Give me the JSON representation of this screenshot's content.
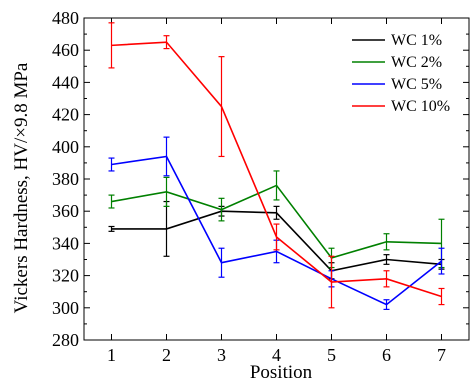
{
  "chart_data": {
    "type": "line",
    "title": "",
    "xlabel": "Position",
    "ylabel": "Vickers Hardness, HV/×9.8 MPa",
    "x": [
      1,
      2,
      3,
      4,
      5,
      6,
      7
    ],
    "xticks": [
      "1",
      "2",
      "3",
      "4",
      "5",
      "6",
      "7"
    ],
    "xlim": [
      0.5,
      7.5
    ],
    "ylim": [
      280,
      480
    ],
    "yticks": [
      "280",
      "300",
      "320",
      "340",
      "360",
      "380",
      "400",
      "420",
      "440",
      "460",
      "480"
    ],
    "grid": false,
    "legend_position": "top-right",
    "error_bars": true,
    "series": [
      {
        "name": "WC 1%",
        "color": "#000000",
        "values": [
          349,
          349,
          360,
          359,
          323,
          330,
          327
        ],
        "errors": [
          1.5,
          17,
          3,
          4,
          5,
          3,
          3
        ]
      },
      {
        "name": "WC 2%",
        "color": "#008000",
        "values": [
          366,
          372,
          361,
          376,
          331,
          341,
          340
        ],
        "errors": [
          4,
          9,
          7,
          9,
          6,
          5,
          15
        ]
      },
      {
        "name": "WC 5%",
        "color": "#0000ff",
        "values": [
          389,
          394,
          328,
          335,
          318,
          302,
          329
        ],
        "errors": [
          4,
          12,
          9,
          7,
          5,
          3,
          8
        ]
      },
      {
        "name": "WC 10%",
        "color": "#ff0000",
        "values": [
          463,
          465,
          425,
          344,
          316,
          318,
          307
        ],
        "errors": [
          14,
          4,
          31,
          8,
          16,
          5,
          5
        ]
      }
    ]
  }
}
